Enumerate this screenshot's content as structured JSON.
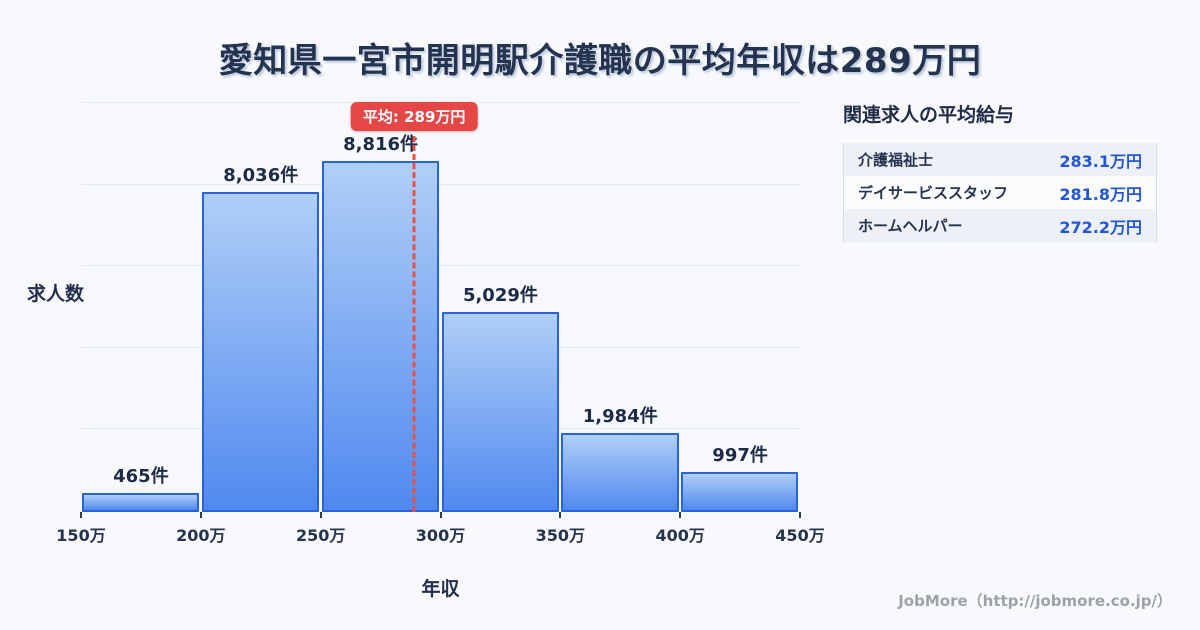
{
  "page": {
    "title": "愛知県一宮市開明駅介護職の平均年収は289万円",
    "footer": "JobMore（http://jobmore.co.jp/）",
    "background_color": "#f7f9fc"
  },
  "chart_data": {
    "type": "bar",
    "title": "愛知県一宮市開明駅介護職の平均年収は289万円",
    "xlabel": "年収",
    "ylabel": "求人数",
    "x_tick_labels": [
      "150万",
      "200万",
      "250万",
      "300万",
      "350万",
      "400万",
      "450万"
    ],
    "x_range": [
      150,
      450
    ],
    "bin_width": 50,
    "categories": [
      "150万-200万",
      "200万-250万",
      "250万-300万",
      "300万-350万",
      "350万-400万",
      "400万-450万"
    ],
    "values": [
      465,
      8036,
      8816,
      5029,
      1984,
      997
    ],
    "value_labels": [
      "465件",
      "8,036件",
      "8,816件",
      "5,029件",
      "1,984件",
      "997件"
    ],
    "ylim": [
      0,
      10300
    ],
    "grid": true,
    "gridline_count": 5,
    "legend": "none",
    "average": {
      "value": 289,
      "badge_label": "平均: 289万円",
      "line_color": "#e8504d",
      "badge_color": "#e54747"
    },
    "bar_colors": {
      "gradient_top": "#b0cff7",
      "gradient_bottom": "#5089ef",
      "border": "#2a63d8"
    }
  },
  "related_jobs": {
    "header": "関連求人の平均給与",
    "rows": [
      {
        "label": "介護福祉士",
        "value": "283.1万円"
      },
      {
        "label": "デイサービススタッフ",
        "value": "281.8万円"
      },
      {
        "label": "ホームヘルパー",
        "value": "272.2万円"
      }
    ],
    "value_color": "#2456d8"
  }
}
